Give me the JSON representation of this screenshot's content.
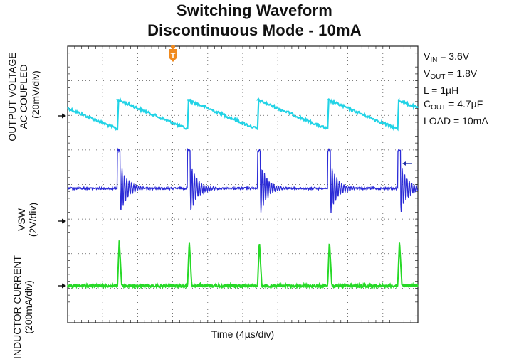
{
  "chart_data": {
    "type": "line",
    "title": "Switching Waveform",
    "subtitle": "Discontinuous Mode - 10mA",
    "xlabel": "Time (4µs/div)",
    "x_divisions": 10,
    "y_divisions": 8,
    "trigger_marker": "T",
    "switching_period_div": 2.0,
    "series": [
      {
        "name": "OUTPUT VOLTAGE AC COUPLED",
        "axis_label_line1": "OUTPUT VOLTAGE",
        "axis_label_line2": "AC COUPLED",
        "scale": "(20mV/div)",
        "color": "#22d3e6",
        "waveform": "sawtooth",
        "ripple_div": 0.85
      },
      {
        "name": "VSW",
        "axis_label_line1": "VSW",
        "scale": "(2V/div)",
        "color": "#2b2bd6",
        "waveform": "ringing pulse",
        "amplitude_div": 1.0
      },
      {
        "name": "INDUCTOR CURRENT",
        "axis_label_line1": "INDUCTOR CURRENT",
        "scale": "(200mA/div)",
        "color": "#27d927",
        "waveform": "triangular pulse",
        "peak_div": 1.0
      }
    ]
  },
  "params": {
    "vin_sym": "V",
    "vin_sub": "IN",
    "vin_val": " = 3.6V",
    "vout_sym": "V",
    "vout_sub": "OUT",
    "vout_val": " = 1.8V",
    "l_line": "L = 1µH",
    "cout_sym": "C",
    "cout_sub": "OUT",
    "cout_val": " = 4.7µF",
    "load_line": "LOAD = 10mA"
  }
}
